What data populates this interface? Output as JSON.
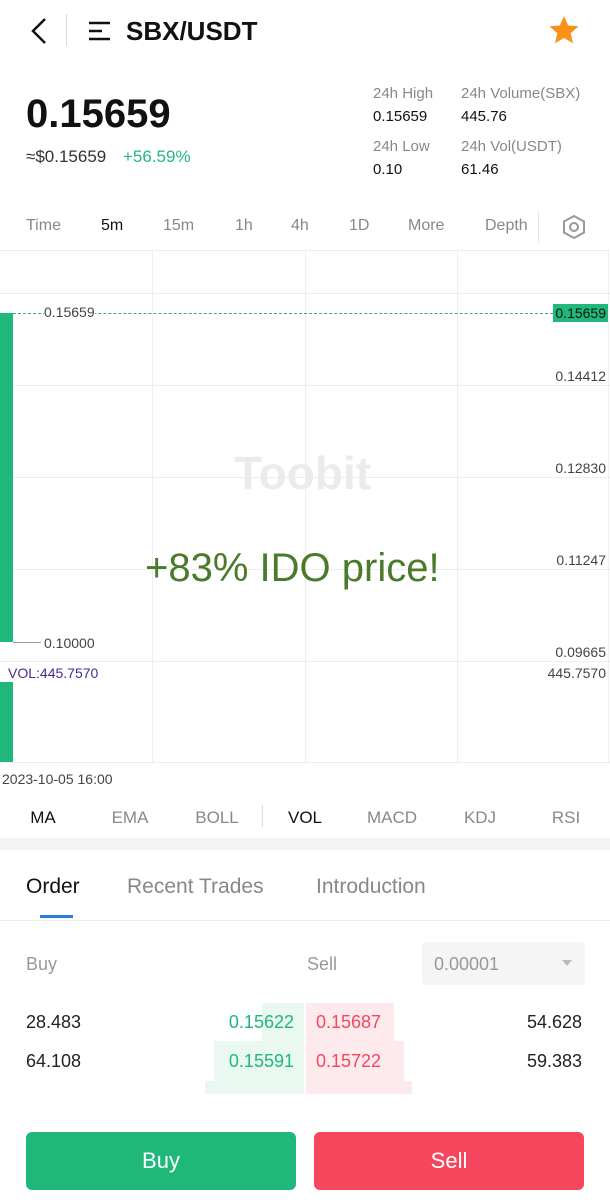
{
  "header": {
    "pair": "SBX/USDT"
  },
  "price": {
    "last": "0.15659",
    "usd": "≈$0.15659",
    "change": "+56.59%"
  },
  "stats": [
    {
      "label": "24h High",
      "value": "0.15659"
    },
    {
      "label": "24h Volume(SBX)",
      "value": "445.76"
    },
    {
      "label": "24h Low",
      "value": "0.10"
    },
    {
      "label": "24h Vol(USDT)",
      "value": "61.46"
    }
  ],
  "intervals": [
    "Time",
    "5m",
    "15m",
    "1h",
    "4h",
    "1D",
    "More",
    "Depth"
  ],
  "chart": {
    "watermark": "Toobit",
    "annotation": "+83% IDO price!",
    "high_label": "0.15659",
    "low_label": "0.10000",
    "current_price": "0.15659",
    "price_axis": [
      "0.14412",
      "0.12830",
      "0.11247",
      "0.09665"
    ],
    "volume_label": "VOL:445.7570",
    "volume_axis": "445.7570",
    "time_label": "2023-10-05 16:00"
  },
  "indicators": [
    "MA",
    "EMA",
    "BOLL",
    "VOL",
    "MACD",
    "KDJ",
    "RSI"
  ],
  "tabs": [
    "Order",
    "Recent Trades",
    "Introduction"
  ],
  "orderbook": {
    "buy_label": "Buy",
    "sell_label": "Sell",
    "precision": "0.00001",
    "rows": [
      [
        "28.483",
        "0.15622",
        "0.15687",
        "54.628"
      ],
      [
        "64.108",
        "0.15591",
        "0.15722",
        "59.383"
      ]
    ]
  },
  "buttons": {
    "buy": "Buy",
    "sell": "Sell"
  }
}
